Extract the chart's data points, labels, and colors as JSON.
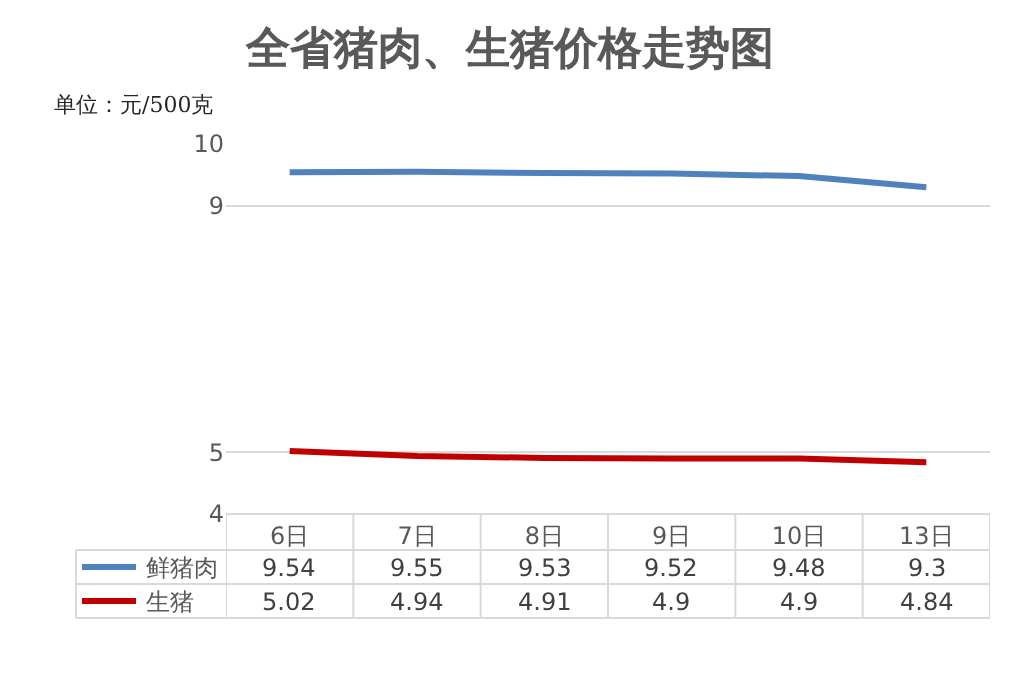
{
  "chart_data": {
    "type": "line",
    "title": "全省猪肉、生猪价格走势图",
    "ylabel": "单位：元/500克",
    "categories": [
      "6日",
      "7日",
      "8日",
      "9日",
      "10日",
      "13日"
    ],
    "series": [
      {
        "name": "鲜猪肉",
        "color": "#4f81bd",
        "values": [
          9.54,
          9.55,
          9.53,
          9.52,
          9.48,
          9.3
        ]
      },
      {
        "name": "生猪",
        "color": "#c00000",
        "values": [
          5.02,
          4.94,
          4.91,
          4.9,
          4.9,
          4.84
        ]
      }
    ],
    "ylim": [
      4,
      10
    ],
    "yticks": [
      4,
      5,
      9,
      10
    ],
    "grid": "y",
    "legend": "bottom",
    "data_labels": true,
    "marker": "none",
    "line_style": "solid"
  }
}
